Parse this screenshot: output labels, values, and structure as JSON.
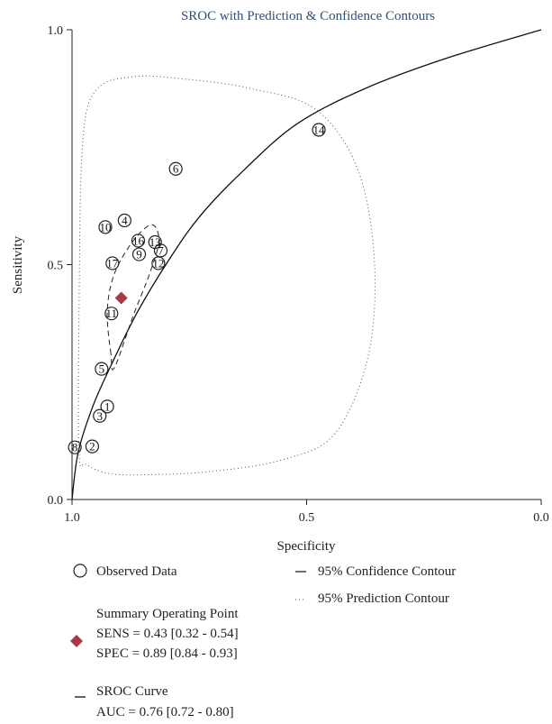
{
  "chart_data": {
    "type": "scatter",
    "title": "SROC with Prediction & Confidence Contours",
    "xlabel": "Specificity",
    "ylabel": "Sensitivity",
    "xlim": [
      1.0,
      0.0
    ],
    "ylim": [
      0.0,
      1.0
    ],
    "x_ticks": [
      "1.0",
      "0.5",
      "0.0"
    ],
    "y_ticks": [
      "0.0",
      "0.5",
      "1.0"
    ],
    "grid": false,
    "observed": [
      {
        "label": "1",
        "specificity": 0.925,
        "sensitivity": 0.198
      },
      {
        "label": "2",
        "specificity": 0.957,
        "sensitivity": 0.113
      },
      {
        "label": "3",
        "specificity": 0.941,
        "sensitivity": 0.178
      },
      {
        "label": "4",
        "specificity": 0.888,
        "sensitivity": 0.594
      },
      {
        "label": "5",
        "specificity": 0.937,
        "sensitivity": 0.278
      },
      {
        "label": "6",
        "specificity": 0.779,
        "sensitivity": 0.704
      },
      {
        "label": "7",
        "specificity": 0.811,
        "sensitivity": 0.53
      },
      {
        "label": "8",
        "specificity": 0.994,
        "sensitivity": 0.111
      },
      {
        "label": "9",
        "specificity": 0.857,
        "sensitivity": 0.522
      },
      {
        "label": "10",
        "specificity": 0.929,
        "sensitivity": 0.58
      },
      {
        "label": "11",
        "specificity": 0.916,
        "sensitivity": 0.396
      },
      {
        "label": "12",
        "specificity": 0.816,
        "sensitivity": 0.503
      },
      {
        "label": "13",
        "specificity": 0.823,
        "sensitivity": 0.548
      },
      {
        "label": "14",
        "specificity": 0.474,
        "sensitivity": 0.787
      },
      {
        "label": "16",
        "specificity": 0.859,
        "sensitivity": 0.551
      },
      {
        "label": "17",
        "specificity": 0.914,
        "sensitivity": 0.503
      }
    ],
    "summary_point": {
      "specificity": 0.895,
      "sensitivity": 0.429
    },
    "summary_color": "#a83a44",
    "sroc_curve": [
      [
        1.0,
        0.0
      ],
      [
        0.987,
        0.1
      ],
      [
        0.955,
        0.2
      ],
      [
        0.91,
        0.3
      ],
      [
        0.86,
        0.4
      ],
      [
        0.8,
        0.5
      ],
      [
        0.73,
        0.6
      ],
      [
        0.635,
        0.7
      ],
      [
        0.52,
        0.8
      ],
      [
        0.375,
        0.875
      ],
      [
        0.2,
        0.94
      ],
      [
        0.0,
        1.0
      ]
    ],
    "confidence_contour": [
      [
        0.917,
        0.31
      ],
      [
        0.925,
        0.4
      ],
      [
        0.91,
        0.48
      ],
      [
        0.87,
        0.55
      ],
      [
        0.83,
        0.585
      ],
      [
        0.815,
        0.55
      ],
      [
        0.835,
        0.48
      ],
      [
        0.87,
        0.39
      ],
      [
        0.91,
        0.28
      ],
      [
        0.917,
        0.31
      ]
    ],
    "prediction_contour": [
      [
        0.985,
        0.1
      ],
      [
        0.985,
        0.4
      ],
      [
        0.978,
        0.75
      ],
      [
        0.95,
        0.87
      ],
      [
        0.87,
        0.9
      ],
      [
        0.76,
        0.895
      ],
      [
        0.62,
        0.875
      ],
      [
        0.48,
        0.83
      ],
      [
        0.39,
        0.7
      ],
      [
        0.355,
        0.5
      ],
      [
        0.37,
        0.3
      ],
      [
        0.44,
        0.14
      ],
      [
        0.55,
        0.085
      ],
      [
        0.7,
        0.06
      ],
      [
        0.83,
        0.053
      ],
      [
        0.92,
        0.055
      ],
      [
        0.97,
        0.075
      ],
      [
        0.985,
        0.1
      ]
    ],
    "legend": {
      "observed": "Observed Data",
      "confidence": "95% Confidence Contour",
      "prediction": "95% Prediction Contour",
      "summary_title": "Summary Operating Point",
      "sens": "SENS = 0.43 [0.32 - 0.54]",
      "spec": "SPEC = 0.89 [0.84 - 0.93]",
      "sroc_title": "SROC Curve",
      "auc": "AUC = 0.76 [0.72 - 0.80]"
    }
  }
}
